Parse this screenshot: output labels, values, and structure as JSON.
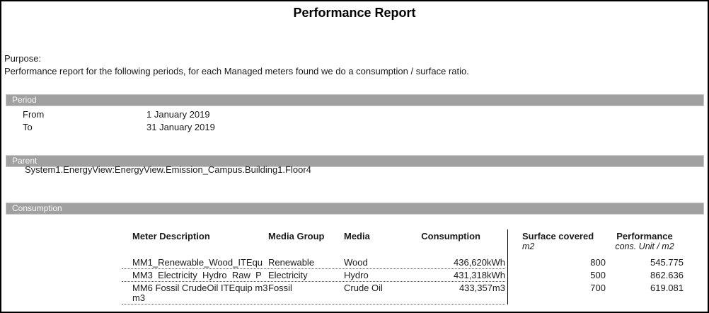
{
  "title": "Performance Report",
  "purpose": {
    "label": "Purpose:",
    "text": "Performance report for the following periods, for each Managed meters found we do a consumption / surface ratio."
  },
  "period": {
    "section_title": "Period",
    "from_label": "From",
    "from_value": "1 January 2019",
    "to_label": "To",
    "to_value": "31 January 2019"
  },
  "parent": {
    "section_title": "Parent",
    "path": "System1.EnergyView:EnergyView.Emission_Campus.Building1.Floor4"
  },
  "consumption": {
    "section_title": "Consumption",
    "columns": {
      "meter": "Meter Description",
      "media_group": "Media Group",
      "media": "Media",
      "consumption": "Consumption",
      "surface": "Surface covered",
      "surface_unit": "m2",
      "performance": "Performance",
      "performance_unit": "cons. Unit / m2"
    },
    "rows": [
      {
        "meter": "MM1_Renewable_Wood_ITEqu",
        "media_group": "Renewable",
        "media": "Wood",
        "consumption": "436,620kWh",
        "surface": "800",
        "performance": "545.775"
      },
      {
        "meter": "MM3  Electricity  Hydro  Raw  P",
        "media_group": "Electricity",
        "media": "Hydro",
        "consumption": "431,318kWh",
        "surface": "500",
        "performance": "862.636"
      },
      {
        "meter": "MM6 Fossil CrudeOil ITEquip m3 m3",
        "media_group": "Fossil",
        "media": "Crude Oil",
        "consumption": "433,357m3",
        "surface": "700",
        "performance": "619.081"
      }
    ]
  },
  "colors": {
    "section_bar_bg": "#a0a0a0",
    "section_bar_text": "#fafafa",
    "page_border": "#000000"
  }
}
